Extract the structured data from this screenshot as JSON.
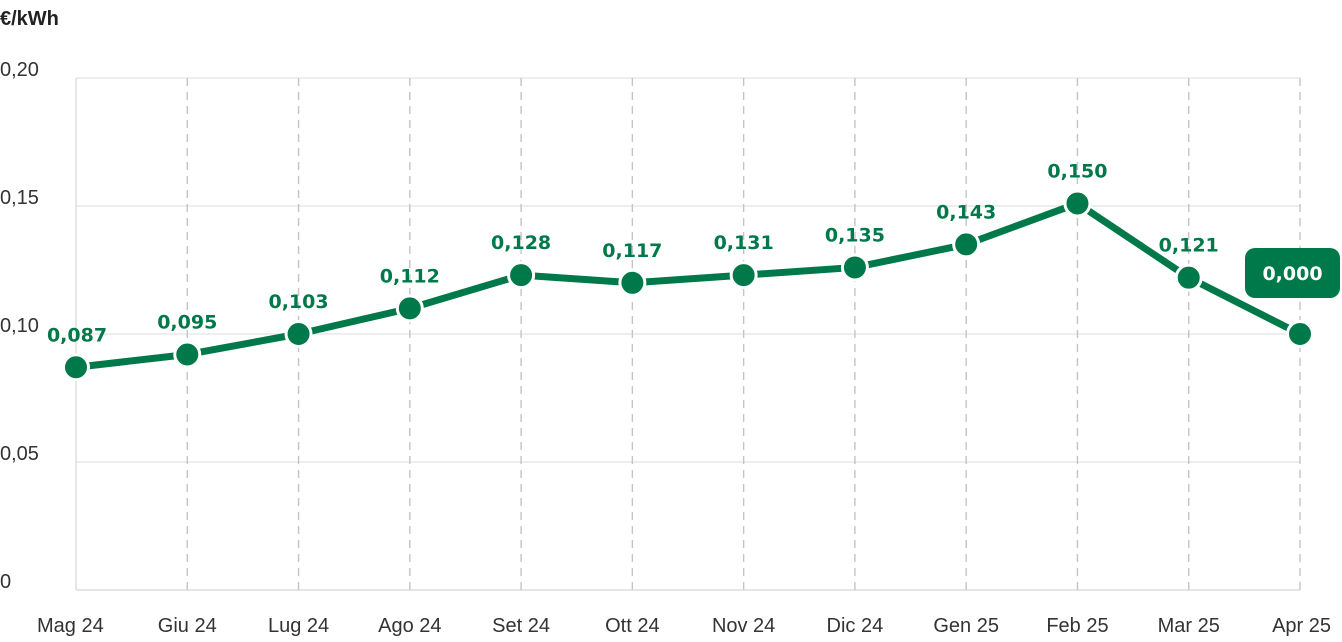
{
  "chart_data": {
    "type": "line",
    "ylabel": "€/kWh",
    "categories": [
      "Mag 24",
      "Giu 24",
      "Lug 24",
      "Ago 24",
      "Set 24",
      "Ott 24",
      "Nov 24",
      "Dic 24",
      "Gen 25",
      "Feb 25",
      "Mar 25",
      "Apr 25"
    ],
    "values": [
      0.087,
      0.095,
      0.103,
      0.112,
      0.128,
      0.117,
      0.131,
      0.135,
      0.143,
      0.15,
      0.121,
      0.0
    ],
    "point_positions": [
      0.087,
      0.092,
      0.1,
      0.11,
      0.123,
      0.12,
      0.123,
      0.126,
      0.135,
      0.151,
      0.122,
      0.1
    ],
    "data_labels": [
      "0,087",
      "0,095",
      "0,103",
      "0,112",
      "0,128",
      "0,117",
      "0,131",
      "0,135",
      "0,143",
      "0,150",
      "0,121",
      "0,000"
    ],
    "y_ticks": [
      {
        "value": 0.2,
        "label": "0,20"
      },
      {
        "value": 0.15,
        "label": "0,15"
      },
      {
        "value": 0.1,
        "label": "0,10"
      },
      {
        "value": 0.05,
        "label": "0,05"
      },
      {
        "value": 0,
        "label": "0"
      }
    ],
    "ylim": [
      0,
      0.2
    ],
    "grid": {
      "horizontal": true,
      "vertical_dashed": true
    },
    "highlighted_point": "Apr 25",
    "line_color": "#00794a",
    "grid_color": "#e3e3e6",
    "dash_color": "#c4c4c8"
  }
}
